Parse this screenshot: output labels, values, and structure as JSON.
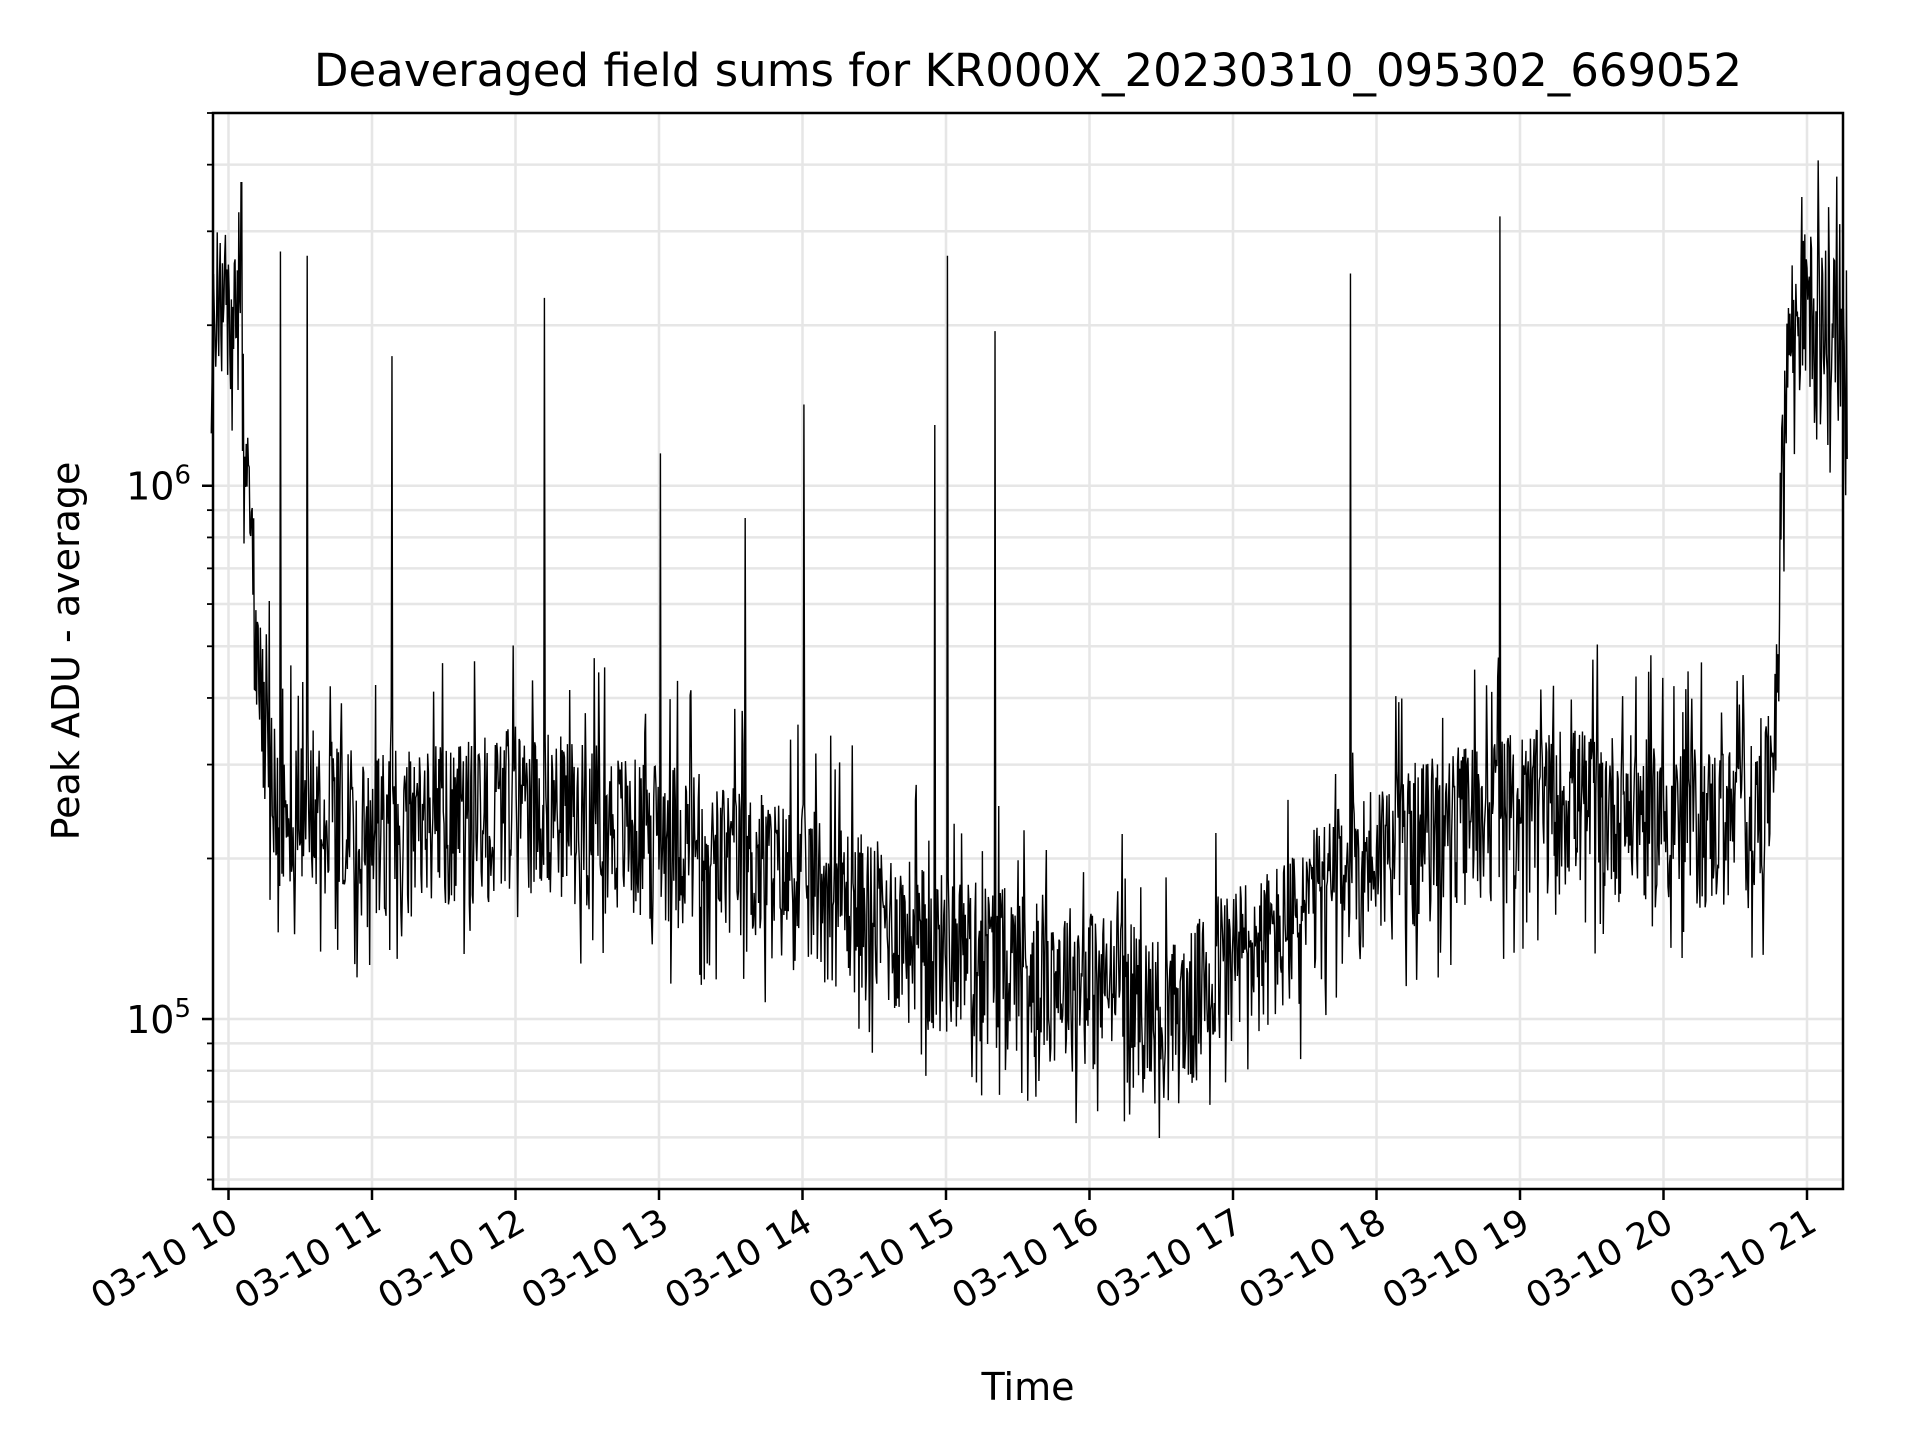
{
  "chart_data": {
    "type": "line",
    "title": "Deaveraged field sums for KR000X_20230310_095302_669052",
    "xlabel": "Time",
    "ylabel": "Peak ADU - average",
    "yscale": "log",
    "grid": true,
    "grid_minor": true,
    "legend": "none",
    "line_color": "#000000",
    "x_range": [
      "03-10 09:53",
      "03-10 21:17"
    ],
    "ylim": [
      48000,
      5000000
    ],
    "x_ticks": [
      "03-10 10",
      "03-10 11",
      "03-10 12",
      "03-10 13",
      "03-10 14",
      "03-10 15",
      "03-10 16",
      "03-10 17",
      "03-10 18",
      "03-10 19",
      "03-10 20",
      "03-10 21"
    ],
    "y_ticks": [
      {
        "base": "10",
        "exp": "5",
        "value": 100000
      },
      {
        "base": "10",
        "exp": "6",
        "value": 1000000
      }
    ],
    "series": [
      {
        "x_hours": [
          9.88,
          9.9,
          9.93,
          9.96,
          10.0,
          10.05,
          10.08,
          10.1,
          10.14,
          10.18,
          10.2,
          10.22,
          10.25,
          10.28,
          10.3,
          10.33,
          10.36,
          10.4,
          10.45,
          10.5,
          10.55,
          10.6,
          10.7,
          10.8,
          10.9,
          11.0,
          11.1,
          11.2,
          11.3,
          11.4,
          11.5,
          11.6,
          11.7,
          11.8,
          11.9,
          12.0,
          12.1,
          12.2,
          12.3,
          12.4,
          12.5,
          12.6,
          12.7,
          12.8,
          12.9,
          13.0,
          13.1,
          13.2,
          13.3,
          13.4,
          13.5,
          13.6,
          13.7,
          13.8,
          13.9,
          14.0,
          14.1,
          14.2,
          14.3,
          14.4,
          14.5,
          14.6,
          14.7,
          14.8,
          14.9,
          15.0,
          15.1,
          15.2,
          15.3,
          15.4,
          15.5,
          15.6,
          15.7,
          15.8,
          15.9,
          16.0,
          16.1,
          16.2,
          16.3,
          16.4,
          16.5,
          16.6,
          16.7,
          16.8,
          16.9,
          17.0,
          17.1,
          17.2,
          17.3,
          17.4,
          17.5,
          17.6,
          17.7,
          17.8,
          17.9,
          18.0,
          18.1,
          18.2,
          18.3,
          18.4,
          18.5,
          18.6,
          18.7,
          18.8,
          18.9,
          19.0,
          19.1,
          19.2,
          19.3,
          19.4,
          19.5,
          19.6,
          19.7,
          19.8,
          19.9,
          20.0,
          20.1,
          20.2,
          20.3,
          20.4,
          20.5,
          20.6,
          20.7,
          20.75,
          20.8,
          20.82,
          20.85,
          20.88,
          20.9,
          20.95,
          21.0,
          21.05,
          21.1,
          21.15,
          21.2,
          21.25,
          21.28
        ],
        "y": [
          1400000,
          2600000,
          1900000,
          2100000,
          2000000,
          2200000,
          1700000,
          1300000,
          900000,
          650000,
          450000,
          380000,
          330000,
          300000,
          280000,
          260000,
          240000,
          235000,
          230000,
          230000,
          240000,
          245000,
          240000,
          230000,
          215000,
          210000,
          220000,
          225000,
          215000,
          220000,
          230000,
          225000,
          230000,
          235000,
          240000,
          245000,
          245000,
          240000,
          235000,
          230000,
          228000,
          225000,
          220000,
          215000,
          210000,
          215000,
          210000,
          205000,
          200000,
          195000,
          190000,
          185000,
          185000,
          180000,
          175000,
          175000,
          170000,
          165000,
          160000,
          155000,
          150000,
          145000,
          140000,
          135000,
          130000,
          130000,
          128000,
          127000,
          125000,
          124000,
          122000,
          120000,
          118000,
          115000,
          113000,
          112000,
          110000,
          108000,
          105000,
          100000,
          98000,
          97000,
          100000,
          110000,
          120000,
          125000,
          128000,
          130000,
          135000,
          140000,
          150000,
          160000,
          170000,
          175000,
          185000,
          195000,
          200000,
          205000,
          210000,
          215000,
          220000,
          225000,
          230000,
          235000,
          235000,
          240000,
          240000,
          240000,
          245000,
          245000,
          240000,
          240000,
          235000,
          235000,
          230000,
          230000,
          225000,
          225000,
          225000,
          225000,
          225000,
          225000,
          230000,
          280000,
          480000,
          900000,
          1500000,
          1800000,
          1900000,
          2000000,
          2100000,
          2050000,
          2000000,
          1900000,
          1850000,
          1700000,
          1500000
        ],
        "spikes": [
          {
            "x_hours": 10.09,
            "y": 3700000
          },
          {
            "x_hours": 10.36,
            "y": 2750000
          },
          {
            "x_hours": 10.55,
            "y": 2700000
          },
          {
            "x_hours": 11.14,
            "y": 1750000
          },
          {
            "x_hours": 12.2,
            "y": 2250000
          },
          {
            "x_hours": 13.01,
            "y": 1150000
          },
          {
            "x_hours": 13.6,
            "y": 870000
          },
          {
            "x_hours": 14.01,
            "y": 1420000
          },
          {
            "x_hours": 14.92,
            "y": 1300000
          },
          {
            "x_hours": 15.01,
            "y": 2700000
          },
          {
            "x_hours": 15.34,
            "y": 1950000
          },
          {
            "x_hours": 17.82,
            "y": 2500000
          },
          {
            "x_hours": 18.86,
            "y": 3200000
          }
        ]
      }
    ]
  }
}
